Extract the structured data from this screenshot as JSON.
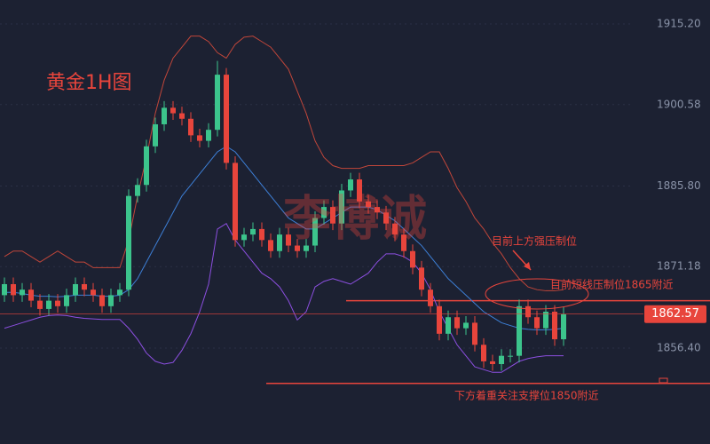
{
  "chart_data": {
    "type": "candlestick",
    "title": "黄金1H图",
    "watermark": "李博诚",
    "up_color": "#3cc48c",
    "down_color": "#e8453c",
    "open": [
      1866,
      1868,
      1866,
      1867,
      1865,
      1863.5,
      1865,
      1864,
      1866,
      1868,
      1867,
      1866,
      1864,
      1866,
      1867,
      1884,
      1886,
      1893,
      1897,
      1900,
      1899,
      1898,
      1895,
      1894,
      1896,
      1906,
      1890,
      1876,
      1877,
      1878,
      1876,
      1874,
      1877,
      1875,
      1874,
      1875,
      1880,
      1882,
      1879,
      1885,
      1887,
      1883,
      1882,
      1881,
      1879,
      1877,
      1874,
      1871,
      1867,
      1864,
      1859,
      1862,
      1860,
      1861,
      1857,
      1854,
      1853.5,
      1855,
      1855,
      1864,
      1862,
      1860,
      1863,
      1858
    ],
    "high": [
      1869.2,
      1869.2,
      1868.2,
      1868.2,
      1866.2,
      1866.2,
      1866.2,
      1867.2,
      1869.2,
      1869.2,
      1868.2,
      1867.2,
      1867.2,
      1868.2,
      1885.2,
      1887.2,
      1894.2,
      1898.2,
      1901.2,
      1901.2,
      1900.2,
      1899.2,
      1896.2,
      1897.2,
      1908.5,
      1907.2,
      1891.2,
      1878.2,
      1879.2,
      1879.2,
      1877.2,
      1878.2,
      1878.2,
      1876.2,
      1876.2,
      1881.2,
      1883.2,
      1883.2,
      1886.2,
      1888.2,
      1888.2,
      1884.2,
      1883.2,
      1882.2,
      1880.2,
      1878.2,
      1875.2,
      1872.2,
      1868.2,
      1865.2,
      1863.2,
      1863.2,
      1862.2,
      1862.2,
      1858.2,
      1855.2,
      1856.2,
      1856.2,
      1865.2,
      1865.2,
      1863.2,
      1864.2,
      1864.2,
      1863.8
    ],
    "low": [
      1864.8,
      1864.8,
      1864.8,
      1863.8,
      1862.3,
      1862.3,
      1862.8,
      1862.8,
      1864.8,
      1865.8,
      1864.8,
      1862.8,
      1862.8,
      1864.8,
      1865.8,
      1882.8,
      1884.8,
      1891.8,
      1895.8,
      1897.8,
      1896.8,
      1893.8,
      1892.8,
      1892.8,
      1894.8,
      1888.8,
      1874.8,
      1874.8,
      1875.8,
      1874.8,
      1872.8,
      1872.8,
      1873.8,
      1872.8,
      1872.8,
      1873.8,
      1878.8,
      1877.8,
      1877.8,
      1883.8,
      1881.8,
      1880.8,
      1879.8,
      1877.8,
      1875.8,
      1872.8,
      1869.8,
      1865.8,
      1862.8,
      1857.8,
      1857.8,
      1858.8,
      1858.8,
      1855.8,
      1852.8,
      1852.3,
      1852.3,
      1853.8,
      1853.8,
      1860.8,
      1858.8,
      1858.8,
      1856.8,
      1856.8
    ],
    "close": [
      1868,
      1866,
      1867,
      1865,
      1863.5,
      1865,
      1864,
      1866,
      1868,
      1867,
      1866,
      1864,
      1866,
      1867,
      1884,
      1886,
      1893,
      1897,
      1900,
      1899,
      1898,
      1895,
      1894,
      1896,
      1906,
      1890,
      1876,
      1877,
      1878,
      1876,
      1874,
      1877,
      1875,
      1874,
      1875,
      1880,
      1882,
      1879,
      1885,
      1887,
      1883,
      1882,
      1881,
      1879,
      1877,
      1874,
      1871,
      1867,
      1864,
      1859,
      1862,
      1860,
      1861,
      1857,
      1854,
      1853.5,
      1855,
      1855,
      1864,
      1862,
      1860,
      1863,
      1858,
      1862.57
    ],
    "bands": [
      {
        "color": "#c0463a",
        "values": [
          1873,
          1874,
          1874,
          1873,
          1872,
          1873,
          1874,
          1873,
          1872,
          1872,
          1871,
          1871,
          1871,
          1871,
          1876,
          1884,
          1891,
          1899,
          1905,
          1909,
          1911,
          1913,
          1913,
          1912,
          1910,
          1909,
          1911.5,
          1912.8,
          1913,
          1912,
          1911,
          1909,
          1907,
          1903,
          1899,
          1894,
          1891,
          1889.5,
          1889,
          1889,
          1889,
          1889.5,
          1889.5,
          1889.5,
          1889.5,
          1889.5,
          1890,
          1891,
          1892,
          1892,
          1889,
          1885.5,
          1883,
          1880,
          1878,
          1875.5,
          1873.5,
          1871,
          1869,
          1867.5,
          1867,
          1866.8,
          1866.8,
          1867
        ]
      },
      {
        "color": "#3d7fd6",
        "values": [
          1866.5,
          1866.5,
          1866.3,
          1866,
          1865.8,
          1865.8,
          1865.7,
          1865.8,
          1866,
          1866,
          1866,
          1865.8,
          1865.8,
          1866,
          1867,
          1869,
          1872,
          1875,
          1878,
          1881,
          1884,
          1886,
          1888,
          1890,
          1892,
          1893,
          1892,
          1890,
          1888,
          1886,
          1884,
          1882,
          1880,
          1879,
          1878,
          1878,
          1879,
          1880,
          1881,
          1882,
          1882,
          1882,
          1881.5,
          1880.5,
          1879.5,
          1878,
          1876.5,
          1875,
          1873,
          1871,
          1869,
          1867.5,
          1866,
          1864.5,
          1863,
          1862,
          1861,
          1860.5,
          1860,
          1859.8,
          1859.7,
          1859.7,
          1859.8,
          1860
        ]
      },
      {
        "color": "#8c4fe0",
        "values": [
          1860,
          1860.5,
          1861,
          1861.5,
          1862,
          1862.3,
          1862.4,
          1862.3,
          1862,
          1861.8,
          1861.7,
          1861.6,
          1861.6,
          1861.6,
          1860,
          1858,
          1855.5,
          1854,
          1853.5,
          1853.8,
          1856,
          1859,
          1863,
          1868,
          1878,
          1879,
          1876,
          1874,
          1872,
          1870,
          1869,
          1867.5,
          1865,
          1861.5,
          1863,
          1867.5,
          1868.5,
          1869,
          1868.5,
          1868,
          1869,
          1870,
          1872,
          1873.5,
          1873.5,
          1873,
          1872,
          1870,
          1867,
          1863,
          1860,
          1857,
          1855,
          1853,
          1852.5,
          1852,
          1852,
          1853,
          1854,
          1854.5,
          1854.8,
          1855,
          1855,
          1855
        ]
      }
    ],
    "ylim": [
      1839.0,
      1919.55
    ],
    "yticks": [
      {
        "value": 1915.2,
        "label": "1915.20"
      },
      1900.58,
      {
        "value": 1885.8,
        "label": "1885.80"
      },
      1871.18,
      {
        "value": 1856.4,
        "label": "1856.40"
      }
    ],
    "last_price": 1862.57,
    "levels": [
      {
        "value": 1865,
        "color": "#e8453c"
      },
      {
        "value": 1850,
        "color": "#e8453c"
      }
    ],
    "annotations": [
      "目前上方强压制位",
      "目前短线压制位1865附近",
      "下方着重关注支撑位1850附近"
    ]
  }
}
